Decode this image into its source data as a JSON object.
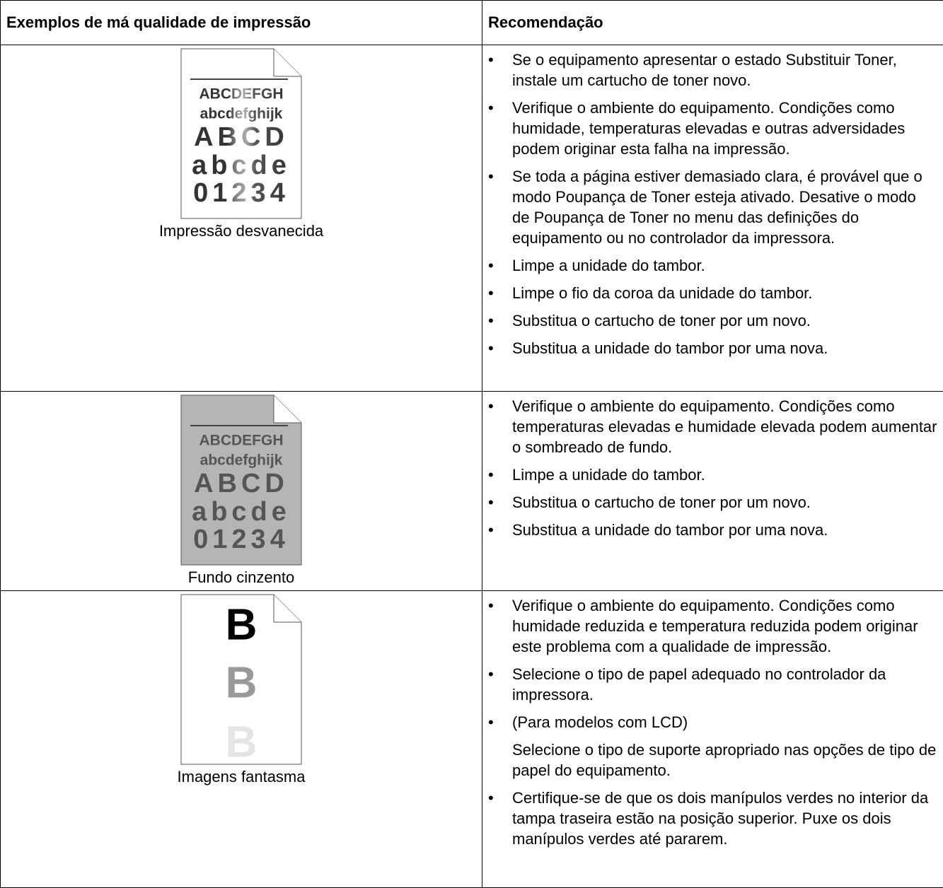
{
  "table": {
    "header": [
      "Exemplos de má qualidade de impressão",
      "Recomendação"
    ],
    "rows": [
      {
        "illustration": [
          "ABCDEFGH",
          "abcdefghijk",
          "ABCD",
          "abcde",
          "01234"
        ],
        "caption": "Impressão desvanecida",
        "recommendations": [
          {
            "text": "Se o equipamento apresentar o estado Substituir Toner, instale um cartucho de toner novo."
          },
          {
            "text": "Verifique o ambiente do equipamento. Condições como humidade, temperaturas elevadas e outras adversidades podem originar esta falha na impressão."
          },
          {
            "text": "Se toda a página estiver demasiado clara, é provável que o modo Poupança de Toner esteja ativado. Desative o modo de Poupança de Toner no menu das definições do equipamento ou no controlador da impressora."
          },
          {
            "text": "Limpe a unidade do tambor."
          },
          {
            "text": "Limpe o fio da coroa da unidade do tambor."
          },
          {
            "text": "Substitua o cartucho de toner por um novo."
          },
          {
            "text": "Substitua a unidade do tambor por uma nova."
          }
        ]
      },
      {
        "illustration": [
          "ABCDEFGH",
          "abcdefghijk",
          "ABCD",
          "abcde",
          "01234"
        ],
        "caption": "Fundo cinzento",
        "recommendations": [
          {
            "text": "Verifique o ambiente do equipamento. Condições como temperaturas elevadas e humidade elevada podem aumentar o sombreado de fundo."
          },
          {
            "text": "Limpe a unidade do tambor."
          },
          {
            "text": "Substitua o cartucho de toner por um novo."
          },
          {
            "text": "Substitua a unidade do tambor por uma nova."
          }
        ]
      },
      {
        "illustration": [
          "B",
          "B",
          "B"
        ],
        "caption": "Imagens fantasma",
        "recommendations": [
          {
            "text": "Verifique o ambiente do equipamento. Condições como humidade reduzida e temperatura reduzida podem originar este problema com a qualidade de impressão."
          },
          {
            "text": "Selecione o tipo de papel adequado no controlador da impressora."
          },
          {
            "text": "(Para modelos com LCD)",
            "detail": "Selecione o tipo de suporte apropriado nas opções de tipo de papel do equipamento."
          },
          {
            "text": "Certifique-se de que os dois manípulos verdes no interior da tampa traseira estão na posição superior. Puxe os dois manípulos verdes até pararem."
          }
        ]
      }
    ]
  }
}
